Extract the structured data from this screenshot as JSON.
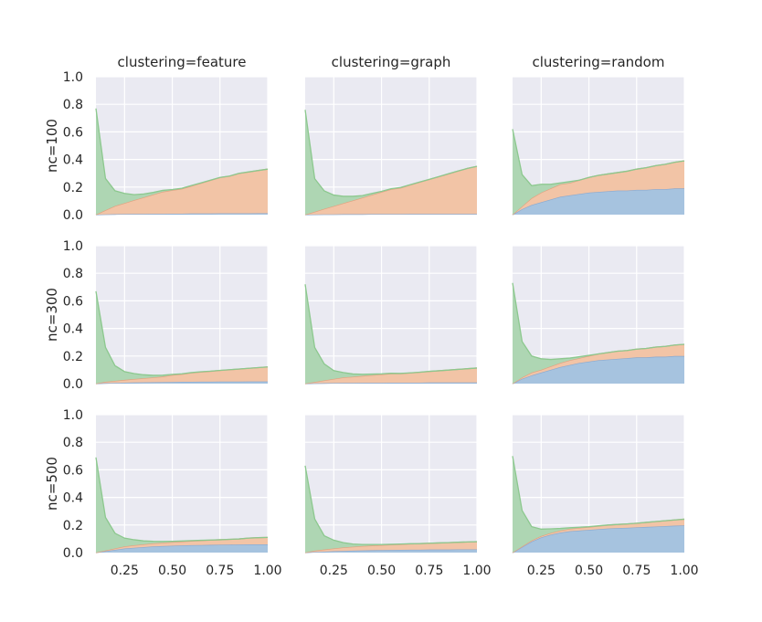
{
  "colors": {
    "background": "#ffffff",
    "panel": "#eaeaf2",
    "grid": "#ffffff",
    "blue_fill": "#a6c3df",
    "blue_line": "#8aa9cf",
    "orange_fill": "#f2c4a6",
    "orange_line": "#e1a17f",
    "green_fill": "#aed6b3",
    "green_line": "#8cc88e",
    "text": "#262626"
  },
  "chart_data": {
    "type": "area",
    "stacked": true,
    "grid": true,
    "columns": [
      "clustering=feature",
      "clustering=graph",
      "clustering=random"
    ],
    "rows": [
      "nc=100",
      "nc=300",
      "nc=500"
    ],
    "x": [
      0.1,
      0.15,
      0.2,
      0.25,
      0.3,
      0.35,
      0.4,
      0.45,
      0.5,
      0.55,
      0.6,
      0.65,
      0.7,
      0.75,
      0.8,
      0.85,
      0.9,
      0.95,
      1.0
    ],
    "xlim": [
      0.1,
      1.0
    ],
    "ylim": [
      0.0,
      1.0
    ],
    "x_ticks": [
      "0.25",
      "0.50",
      "0.75",
      "1.00"
    ],
    "x_tick_values": [
      0.25,
      0.5,
      0.75,
      1.0
    ],
    "y_ticks": [
      "0.0",
      "0.2",
      "0.4",
      "0.6",
      "0.8",
      "1.0"
    ],
    "y_tick_values": [
      0.0,
      0.2,
      0.4,
      0.6,
      0.8,
      1.0
    ],
    "panels": [
      {
        "row": 0,
        "col": 0,
        "blue": [
          0.0,
          0.002,
          0.003,
          0.004,
          0.005,
          0.005,
          0.006,
          0.006,
          0.007,
          0.007,
          0.008,
          0.008,
          0.008,
          0.009,
          0.009,
          0.009,
          0.009,
          0.01,
          0.01
        ],
        "orange": [
          0.0,
          0.03,
          0.06,
          0.08,
          0.1,
          0.12,
          0.14,
          0.16,
          0.17,
          0.18,
          0.2,
          0.22,
          0.24,
          0.26,
          0.27,
          0.29,
          0.3,
          0.31,
          0.32
        ],
        "green": [
          0.77,
          0.23,
          0.11,
          0.07,
          0.04,
          0.025,
          0.015,
          0.01,
          0.005,
          0.004,
          0.003,
          0.002,
          0.002,
          0.001,
          0.001,
          0.001,
          0.001,
          0.0,
          0.0
        ]
      },
      {
        "row": 0,
        "col": 1,
        "blue": [
          0.0,
          0.001,
          0.002,
          0.002,
          0.003,
          0.003,
          0.003,
          0.004,
          0.004,
          0.004,
          0.004,
          0.005,
          0.005,
          0.005,
          0.005,
          0.005,
          0.005,
          0.005,
          0.005
        ],
        "orange": [
          0.0,
          0.02,
          0.04,
          0.06,
          0.08,
          0.1,
          0.12,
          0.14,
          0.16,
          0.18,
          0.19,
          0.21,
          0.23,
          0.25,
          0.27,
          0.29,
          0.31,
          0.33,
          0.345
        ],
        "green": [
          0.76,
          0.24,
          0.13,
          0.08,
          0.05,
          0.03,
          0.015,
          0.01,
          0.005,
          0.004,
          0.003,
          0.002,
          0.002,
          0.001,
          0.001,
          0.001,
          0.001,
          0.0,
          0.0
        ]
      },
      {
        "row": 0,
        "col": 2,
        "blue": [
          0.0,
          0.04,
          0.07,
          0.09,
          0.11,
          0.13,
          0.14,
          0.15,
          0.16,
          0.165,
          0.17,
          0.175,
          0.175,
          0.18,
          0.18,
          0.185,
          0.185,
          0.19,
          0.19
        ],
        "orange": [
          0.0,
          0.02,
          0.05,
          0.07,
          0.08,
          0.09,
          0.09,
          0.1,
          0.11,
          0.12,
          0.125,
          0.13,
          0.14,
          0.15,
          0.16,
          0.17,
          0.18,
          0.19,
          0.2
        ],
        "green": [
          0.62,
          0.23,
          0.09,
          0.06,
          0.03,
          0.01,
          0.01,
          0.0,
          0.0,
          0.0,
          0.0,
          0.0,
          0.0,
          0.0,
          0.0,
          0.0,
          0.0,
          0.0,
          0.0
        ]
      },
      {
        "row": 1,
        "col": 0,
        "blue": [
          0.0,
          0.003,
          0.005,
          0.007,
          0.008,
          0.009,
          0.01,
          0.011,
          0.012,
          0.013,
          0.013,
          0.014,
          0.014,
          0.015,
          0.015,
          0.015,
          0.016,
          0.016,
          0.016
        ],
        "orange": [
          0.0,
          0.01,
          0.015,
          0.02,
          0.025,
          0.03,
          0.035,
          0.04,
          0.05,
          0.055,
          0.065,
          0.07,
          0.075,
          0.08,
          0.085,
          0.09,
          0.095,
          0.1,
          0.105
        ],
        "green": [
          0.67,
          0.25,
          0.11,
          0.06,
          0.04,
          0.025,
          0.015,
          0.01,
          0.005,
          0.003,
          0.002,
          0.002,
          0.001,
          0.001,
          0.001,
          0.001,
          0.0,
          0.0,
          0.0
        ]
      },
      {
        "row": 1,
        "col": 1,
        "blue": [
          0.0,
          0.002,
          0.003,
          0.004,
          0.005,
          0.005,
          0.006,
          0.006,
          0.006,
          0.007,
          0.007,
          0.007,
          0.007,
          0.008,
          0.008,
          0.008,
          0.008,
          0.008,
          0.008
        ],
        "orange": [
          0.0,
          0.01,
          0.02,
          0.03,
          0.04,
          0.045,
          0.05,
          0.055,
          0.06,
          0.065,
          0.065,
          0.07,
          0.075,
          0.08,
          0.085,
          0.09,
          0.095,
          0.1,
          0.105
        ],
        "green": [
          0.72,
          0.25,
          0.12,
          0.06,
          0.035,
          0.02,
          0.012,
          0.008,
          0.005,
          0.003,
          0.002,
          0.001,
          0.001,
          0.001,
          0.0,
          0.0,
          0.0,
          0.0,
          0.0
        ]
      },
      {
        "row": 1,
        "col": 2,
        "blue": [
          0.0,
          0.035,
          0.06,
          0.08,
          0.1,
          0.12,
          0.135,
          0.15,
          0.16,
          0.17,
          0.175,
          0.18,
          0.185,
          0.19,
          0.19,
          0.195,
          0.195,
          0.2,
          0.2
        ],
        "orange": [
          0.0,
          0.01,
          0.02,
          0.02,
          0.025,
          0.03,
          0.035,
          0.035,
          0.04,
          0.045,
          0.05,
          0.055,
          0.055,
          0.06,
          0.065,
          0.07,
          0.075,
          0.08,
          0.085
        ],
        "green": [
          0.73,
          0.26,
          0.12,
          0.08,
          0.05,
          0.03,
          0.015,
          0.01,
          0.005,
          0.0,
          0.0,
          0.0,
          0.0,
          0.0,
          0.0,
          0.0,
          0.0,
          0.0,
          0.0
        ]
      },
      {
        "row": 2,
        "col": 0,
        "blue": [
          0.0,
          0.01,
          0.02,
          0.03,
          0.035,
          0.04,
          0.045,
          0.047,
          0.05,
          0.052,
          0.054,
          0.055,
          0.056,
          0.057,
          0.058,
          0.059,
          0.06,
          0.06,
          0.06
        ],
        "orange": [
          0.0,
          0.005,
          0.01,
          0.015,
          0.018,
          0.02,
          0.022,
          0.024,
          0.026,
          0.028,
          0.03,
          0.032,
          0.034,
          0.036,
          0.038,
          0.04,
          0.045,
          0.048,
          0.05
        ],
        "green": [
          0.69,
          0.24,
          0.11,
          0.06,
          0.04,
          0.025,
          0.015,
          0.01,
          0.006,
          0.004,
          0.003,
          0.002,
          0.001,
          0.0,
          0.0,
          0.0,
          0.0,
          0.0,
          0.0
        ]
      },
      {
        "row": 2,
        "col": 1,
        "blue": [
          0.0,
          0.004,
          0.007,
          0.01,
          0.012,
          0.014,
          0.016,
          0.017,
          0.018,
          0.019,
          0.02,
          0.021,
          0.021,
          0.022,
          0.022,
          0.022,
          0.023,
          0.023,
          0.023
        ],
        "orange": [
          0.0,
          0.01,
          0.015,
          0.02,
          0.025,
          0.028,
          0.031,
          0.034,
          0.036,
          0.038,
          0.04,
          0.042,
          0.044,
          0.046,
          0.048,
          0.05,
          0.052,
          0.054,
          0.056
        ],
        "green": [
          0.63,
          0.23,
          0.1,
          0.06,
          0.035,
          0.02,
          0.012,
          0.008,
          0.005,
          0.003,
          0.002,
          0.001,
          0.0,
          0.0,
          0.0,
          0.0,
          0.0,
          0.0,
          0.0
        ]
      },
      {
        "row": 2,
        "col": 2,
        "blue": [
          0.0,
          0.04,
          0.08,
          0.11,
          0.13,
          0.145,
          0.155,
          0.16,
          0.165,
          0.17,
          0.175,
          0.178,
          0.18,
          0.183,
          0.186,
          0.189,
          0.192,
          0.195,
          0.197
        ],
        "orange": [
          0.0,
          0.005,
          0.008,
          0.01,
          0.012,
          0.015,
          0.017,
          0.019,
          0.02,
          0.022,
          0.024,
          0.026,
          0.028,
          0.03,
          0.033,
          0.036,
          0.039,
          0.042,
          0.045
        ],
        "green": [
          0.7,
          0.26,
          0.1,
          0.05,
          0.03,
          0.015,
          0.008,
          0.005,
          0.003,
          0.002,
          0.001,
          0.0,
          0.0,
          0.0,
          0.0,
          0.0,
          0.0,
          0.0,
          0.0
        ]
      }
    ]
  }
}
